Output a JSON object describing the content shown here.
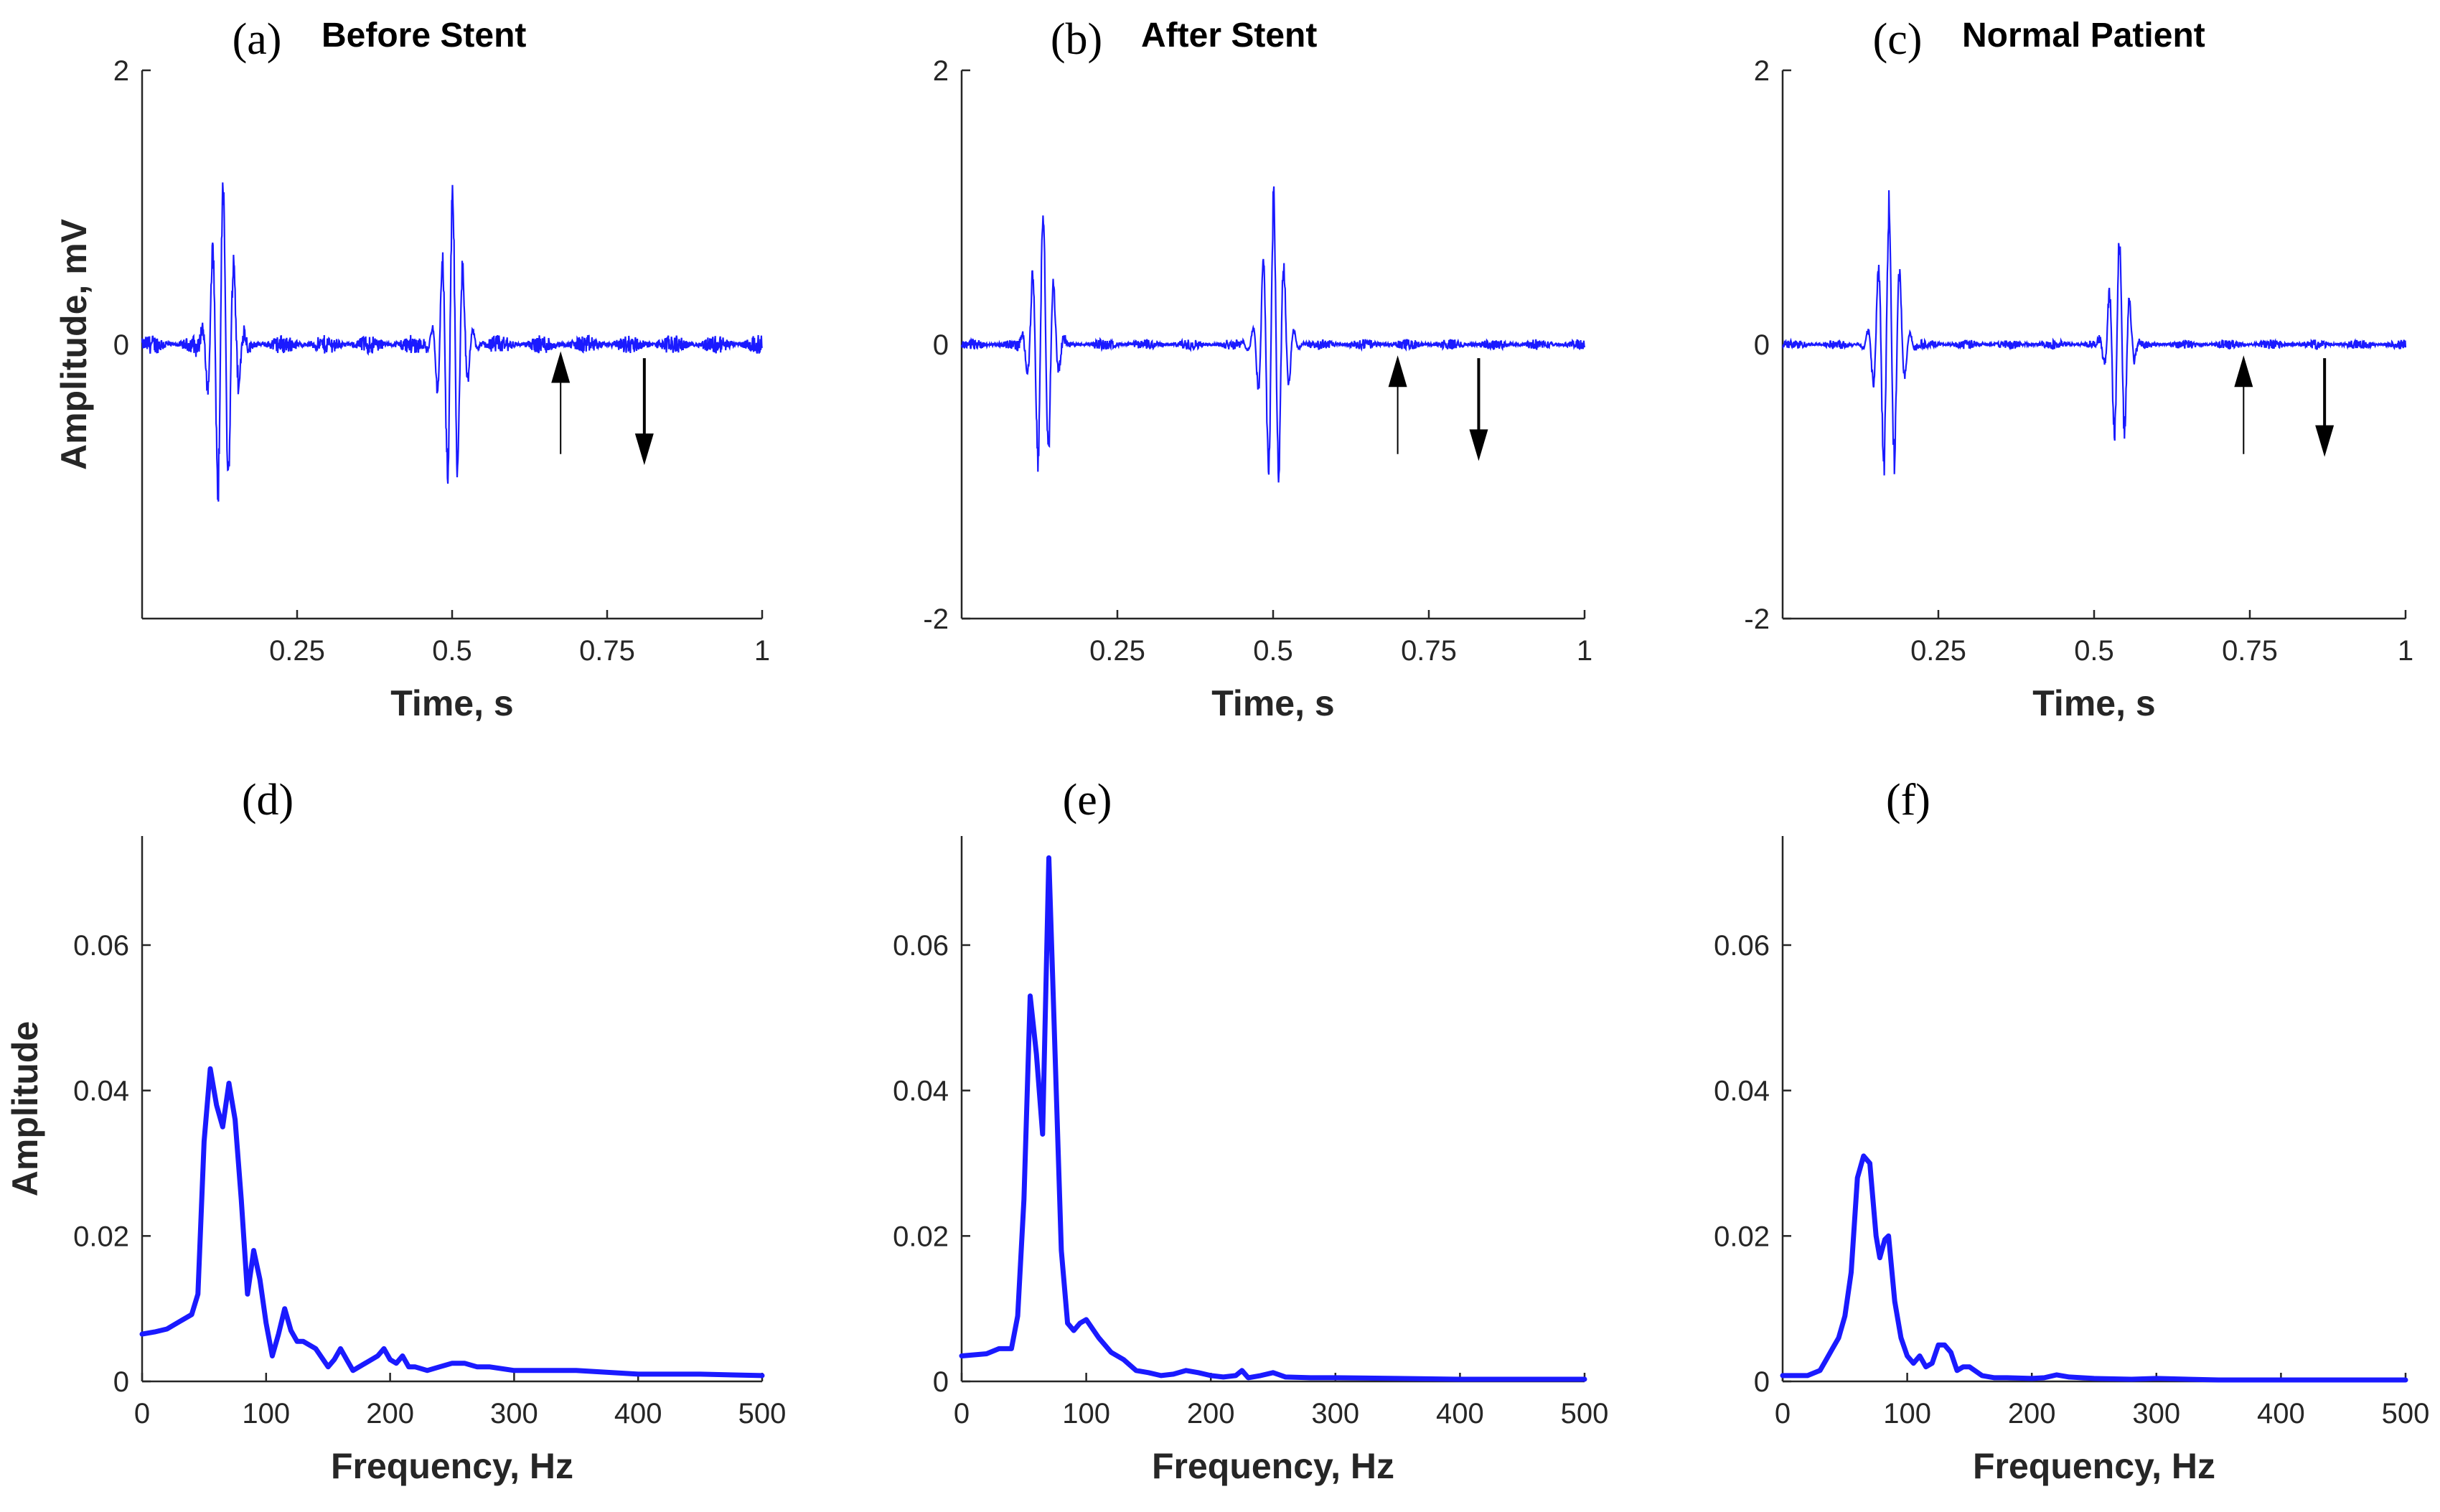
{
  "colors": {
    "signal": "#1a1aff",
    "axis": "#262626",
    "arrow": "#000000"
  },
  "chart_data": [
    {
      "id": "a",
      "type": "line",
      "letter": "(a)",
      "title": "Before Stent",
      "xlabel": "Time, s",
      "ylabel": "Amplitude, mV",
      "xlim": [
        0,
        1
      ],
      "ylim": [
        -2,
        2
      ],
      "xticks": [
        0.25,
        0.5,
        0.75,
        1
      ],
      "xtick_labels": [
        "0.25",
        "0.5",
        "0.75",
        "1"
      ],
      "yticks": [
        0,
        2
      ],
      "ytick_labels": [
        "0",
        "2"
      ],
      "bursts": [
        {
          "t": 0.13,
          "amp": 1.18,
          "w": 0.022,
          "f": 58
        },
        {
          "t": 0.5,
          "amp": 1.05,
          "w": 0.022,
          "f": 60
        }
      ],
      "noise": 0.07,
      "arrows": [
        {
          "direction": "up",
          "x": 0.675,
          "y_tip": -0.05,
          "y_tail": -0.8
        },
        {
          "direction": "down",
          "x": 0.81,
          "y_tip": -0.88,
          "y_tail": -0.1
        }
      ]
    },
    {
      "id": "b",
      "type": "line",
      "letter": "(b)",
      "title": "After Stent",
      "xlabel": "Time, s",
      "ylabel": "",
      "xlim": [
        0,
        1
      ],
      "ylim": [
        -2,
        2
      ],
      "xticks": [
        0.25,
        0.5,
        0.75,
        1
      ],
      "xtick_labels": [
        "0.25",
        "0.5",
        "0.75",
        "1"
      ],
      "yticks": [
        -2,
        0,
        2
      ],
      "ytick_labels": [
        "-2",
        "0",
        "2"
      ],
      "bursts": [
        {
          "t": 0.13,
          "amp": 0.95,
          "w": 0.02,
          "f": 58
        },
        {
          "t": 0.5,
          "amp": 1.05,
          "w": 0.022,
          "f": 60
        }
      ],
      "noise": 0.04,
      "arrows": [
        {
          "direction": "up",
          "x": 0.7,
          "y_tip": -0.08,
          "y_tail": -0.8
        },
        {
          "direction": "down",
          "x": 0.83,
          "y_tip": -0.85,
          "y_tail": -0.1
        }
      ]
    },
    {
      "id": "c",
      "type": "line",
      "letter": "(c)",
      "title": "Normal Patient",
      "xlabel": "Time, s",
      "ylabel": "",
      "xlim": [
        0,
        1
      ],
      "ylim": [
        -2,
        2
      ],
      "xticks": [
        0.25,
        0.5,
        0.75,
        1
      ],
      "xtick_labels": [
        "0.25",
        "0.5",
        "0.75",
        "1"
      ],
      "yticks": [
        -2,
        0,
        2
      ],
      "ytick_labels": [
        "-2",
        "0",
        "2"
      ],
      "bursts": [
        {
          "t": 0.17,
          "amp": 0.98,
          "w": 0.022,
          "f": 58
        },
        {
          "t": 0.54,
          "amp": 0.78,
          "w": 0.018,
          "f": 60
        }
      ],
      "noise": 0.035,
      "arrows": [
        {
          "direction": "up",
          "x": 0.74,
          "y_tip": -0.08,
          "y_tail": -0.8
        },
        {
          "direction": "down",
          "x": 0.87,
          "y_tip": -0.82,
          "y_tail": -0.1
        }
      ]
    },
    {
      "id": "d",
      "type": "line",
      "letter": "(d)",
      "title": "",
      "xlabel": "Frequency, Hz",
      "ylabel": "Amplitude",
      "xlim": [
        0,
        500
      ],
      "ylim": [
        0,
        0.075
      ],
      "xticks": [
        0,
        100,
        200,
        300,
        400,
        500
      ],
      "xtick_labels": [
        "0",
        "100",
        "200",
        "300",
        "400",
        "500"
      ],
      "yticks": [
        0,
        0.02,
        0.04,
        0.06
      ],
      "ytick_labels": [
        "0",
        "0.02",
        "0.04",
        "0.06"
      ],
      "x": [
        0,
        10,
        20,
        30,
        40,
        45,
        50,
        55,
        60,
        65,
        70,
        75,
        80,
        85,
        90,
        95,
        100,
        105,
        110,
        115,
        120,
        125,
        130,
        140,
        150,
        155,
        160,
        165,
        170,
        180,
        190,
        195,
        200,
        205,
        210,
        215,
        220,
        230,
        240,
        250,
        260,
        270,
        280,
        300,
        350,
        400,
        450,
        500
      ],
      "y": [
        0.0065,
        0.0068,
        0.0072,
        0.0082,
        0.0092,
        0.012,
        0.033,
        0.043,
        0.038,
        0.035,
        0.041,
        0.036,
        0.025,
        0.012,
        0.018,
        0.014,
        0.008,
        0.0035,
        0.0065,
        0.01,
        0.007,
        0.0055,
        0.0055,
        0.0045,
        0.002,
        0.003,
        0.0045,
        0.003,
        0.0015,
        0.0025,
        0.0035,
        0.0045,
        0.003,
        0.0025,
        0.0035,
        0.002,
        0.002,
        0.0015,
        0.002,
        0.0025,
        0.0025,
        0.002,
        0.002,
        0.0015,
        0.0015,
        0.001,
        0.001,
        0.0008
      ]
    },
    {
      "id": "e",
      "type": "line",
      "letter": "(e)",
      "title": "",
      "xlabel": "Frequency, Hz",
      "ylabel": "",
      "xlim": [
        0,
        500
      ],
      "ylim": [
        0,
        0.075
      ],
      "xticks": [
        0,
        100,
        200,
        300,
        400,
        500
      ],
      "xtick_labels": [
        "0",
        "100",
        "200",
        "300",
        "400",
        "500"
      ],
      "yticks": [
        0,
        0.02,
        0.04,
        0.06
      ],
      "ytick_labels": [
        "0",
        "0.02",
        "0.04",
        "0.06"
      ],
      "x": [
        0,
        20,
        30,
        40,
        45,
        50,
        55,
        60,
        65,
        70,
        75,
        80,
        85,
        90,
        95,
        100,
        110,
        120,
        130,
        140,
        150,
        160,
        170,
        180,
        190,
        200,
        210,
        220,
        225,
        230,
        240,
        250,
        260,
        280,
        300,
        350,
        400,
        450,
        500
      ],
      "y": [
        0.0035,
        0.0038,
        0.0045,
        0.0045,
        0.009,
        0.025,
        0.053,
        0.045,
        0.034,
        0.072,
        0.045,
        0.018,
        0.008,
        0.007,
        0.008,
        0.0085,
        0.006,
        0.004,
        0.003,
        0.0015,
        0.0012,
        0.0008,
        0.001,
        0.0015,
        0.0012,
        0.0008,
        0.0006,
        0.0008,
        0.0015,
        0.0005,
        0.0008,
        0.0012,
        0.0006,
        0.0005,
        0.0005,
        0.0004,
        0.0003,
        0.0003,
        0.0003
      ]
    },
    {
      "id": "f",
      "type": "line",
      "letter": "(f)",
      "title": "",
      "xlabel": "Frequency, Hz",
      "ylabel": "",
      "xlim": [
        0,
        500
      ],
      "ylim": [
        0,
        0.075
      ],
      "xticks": [
        0,
        100,
        200,
        300,
        400,
        500
      ],
      "xtick_labels": [
        "0",
        "100",
        "200",
        "300",
        "400",
        "500"
      ],
      "yticks": [
        0,
        0.02,
        0.04,
        0.06
      ],
      "ytick_labels": [
        "0",
        "0.02",
        "0.04",
        "0.06"
      ],
      "x": [
        0,
        20,
        30,
        35,
        40,
        45,
        50,
        55,
        60,
        65,
        70,
        75,
        78,
        82,
        85,
        90,
        95,
        100,
        105,
        110,
        115,
        120,
        125,
        130,
        135,
        140,
        145,
        150,
        160,
        170,
        180,
        200,
        210,
        220,
        230,
        240,
        250,
        280,
        300,
        350,
        400,
        450,
        500
      ],
      "y": [
        0.0008,
        0.0008,
        0.0015,
        0.003,
        0.0045,
        0.006,
        0.009,
        0.015,
        0.028,
        0.031,
        0.03,
        0.02,
        0.017,
        0.0195,
        0.02,
        0.011,
        0.006,
        0.0035,
        0.0025,
        0.0035,
        0.002,
        0.0025,
        0.005,
        0.005,
        0.004,
        0.0015,
        0.002,
        0.002,
        0.0008,
        0.0005,
        0.0005,
        0.0004,
        0.0005,
        0.0009,
        0.0006,
        0.0005,
        0.0004,
        0.0003,
        0.0004,
        0.0002,
        0.0002,
        0.0002,
        0.0002
      ]
    }
  ]
}
